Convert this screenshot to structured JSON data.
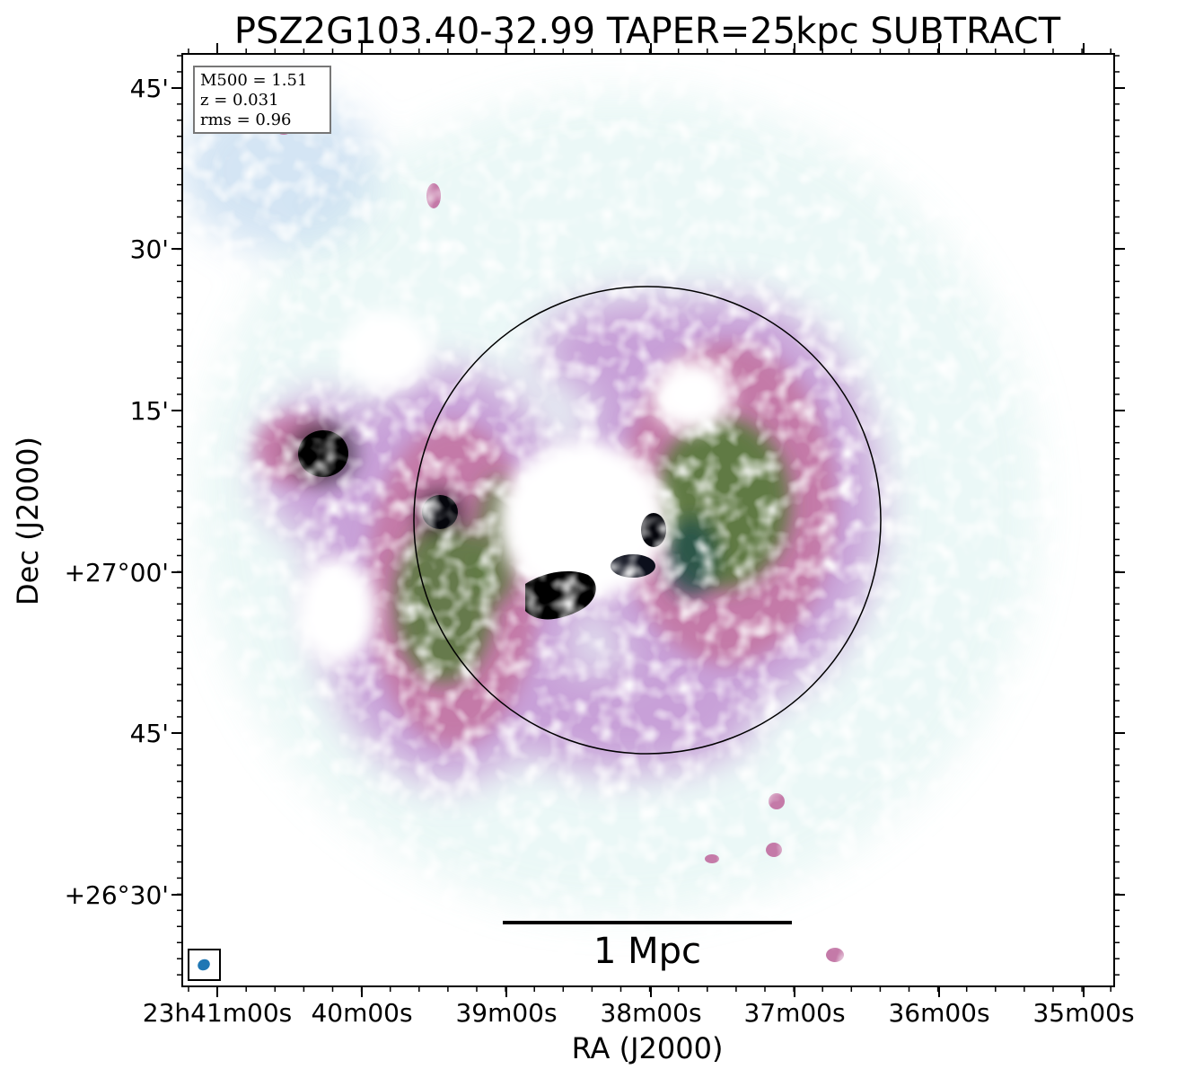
{
  "title": "PSZ2G103.40-32.99 TAPER=25kpc SUBTRACT",
  "info_box": {
    "m500": "M500 = 1.51",
    "z": "z = 0.031",
    "rms": "rms = 0.96"
  },
  "axes": {
    "xlabel": "RA (J2000)",
    "ylabel": "Dec (J2000)",
    "x_ticks": [
      "23h41m00s",
      "40m00s",
      "39m00s",
      "38m00s",
      "37m00s",
      "36m00s",
      "35m00s"
    ],
    "y_ticks": [
      "45'",
      "30'",
      "15'",
      "+27°00'",
      "45'",
      "+26°30'"
    ]
  },
  "scale_bar": {
    "label": "1 Mpc"
  },
  "colors": {
    "frame": "#000000",
    "beam": "#1f77b4",
    "colormap": [
      "#ffffff",
      "#c9eeea",
      "#b6d3ec",
      "#c8a0d8",
      "#c47aa8",
      "#8a5a3a",
      "#4f7a32",
      "#1f4f4a",
      "#0c0f1c",
      "#000000"
    ]
  }
}
